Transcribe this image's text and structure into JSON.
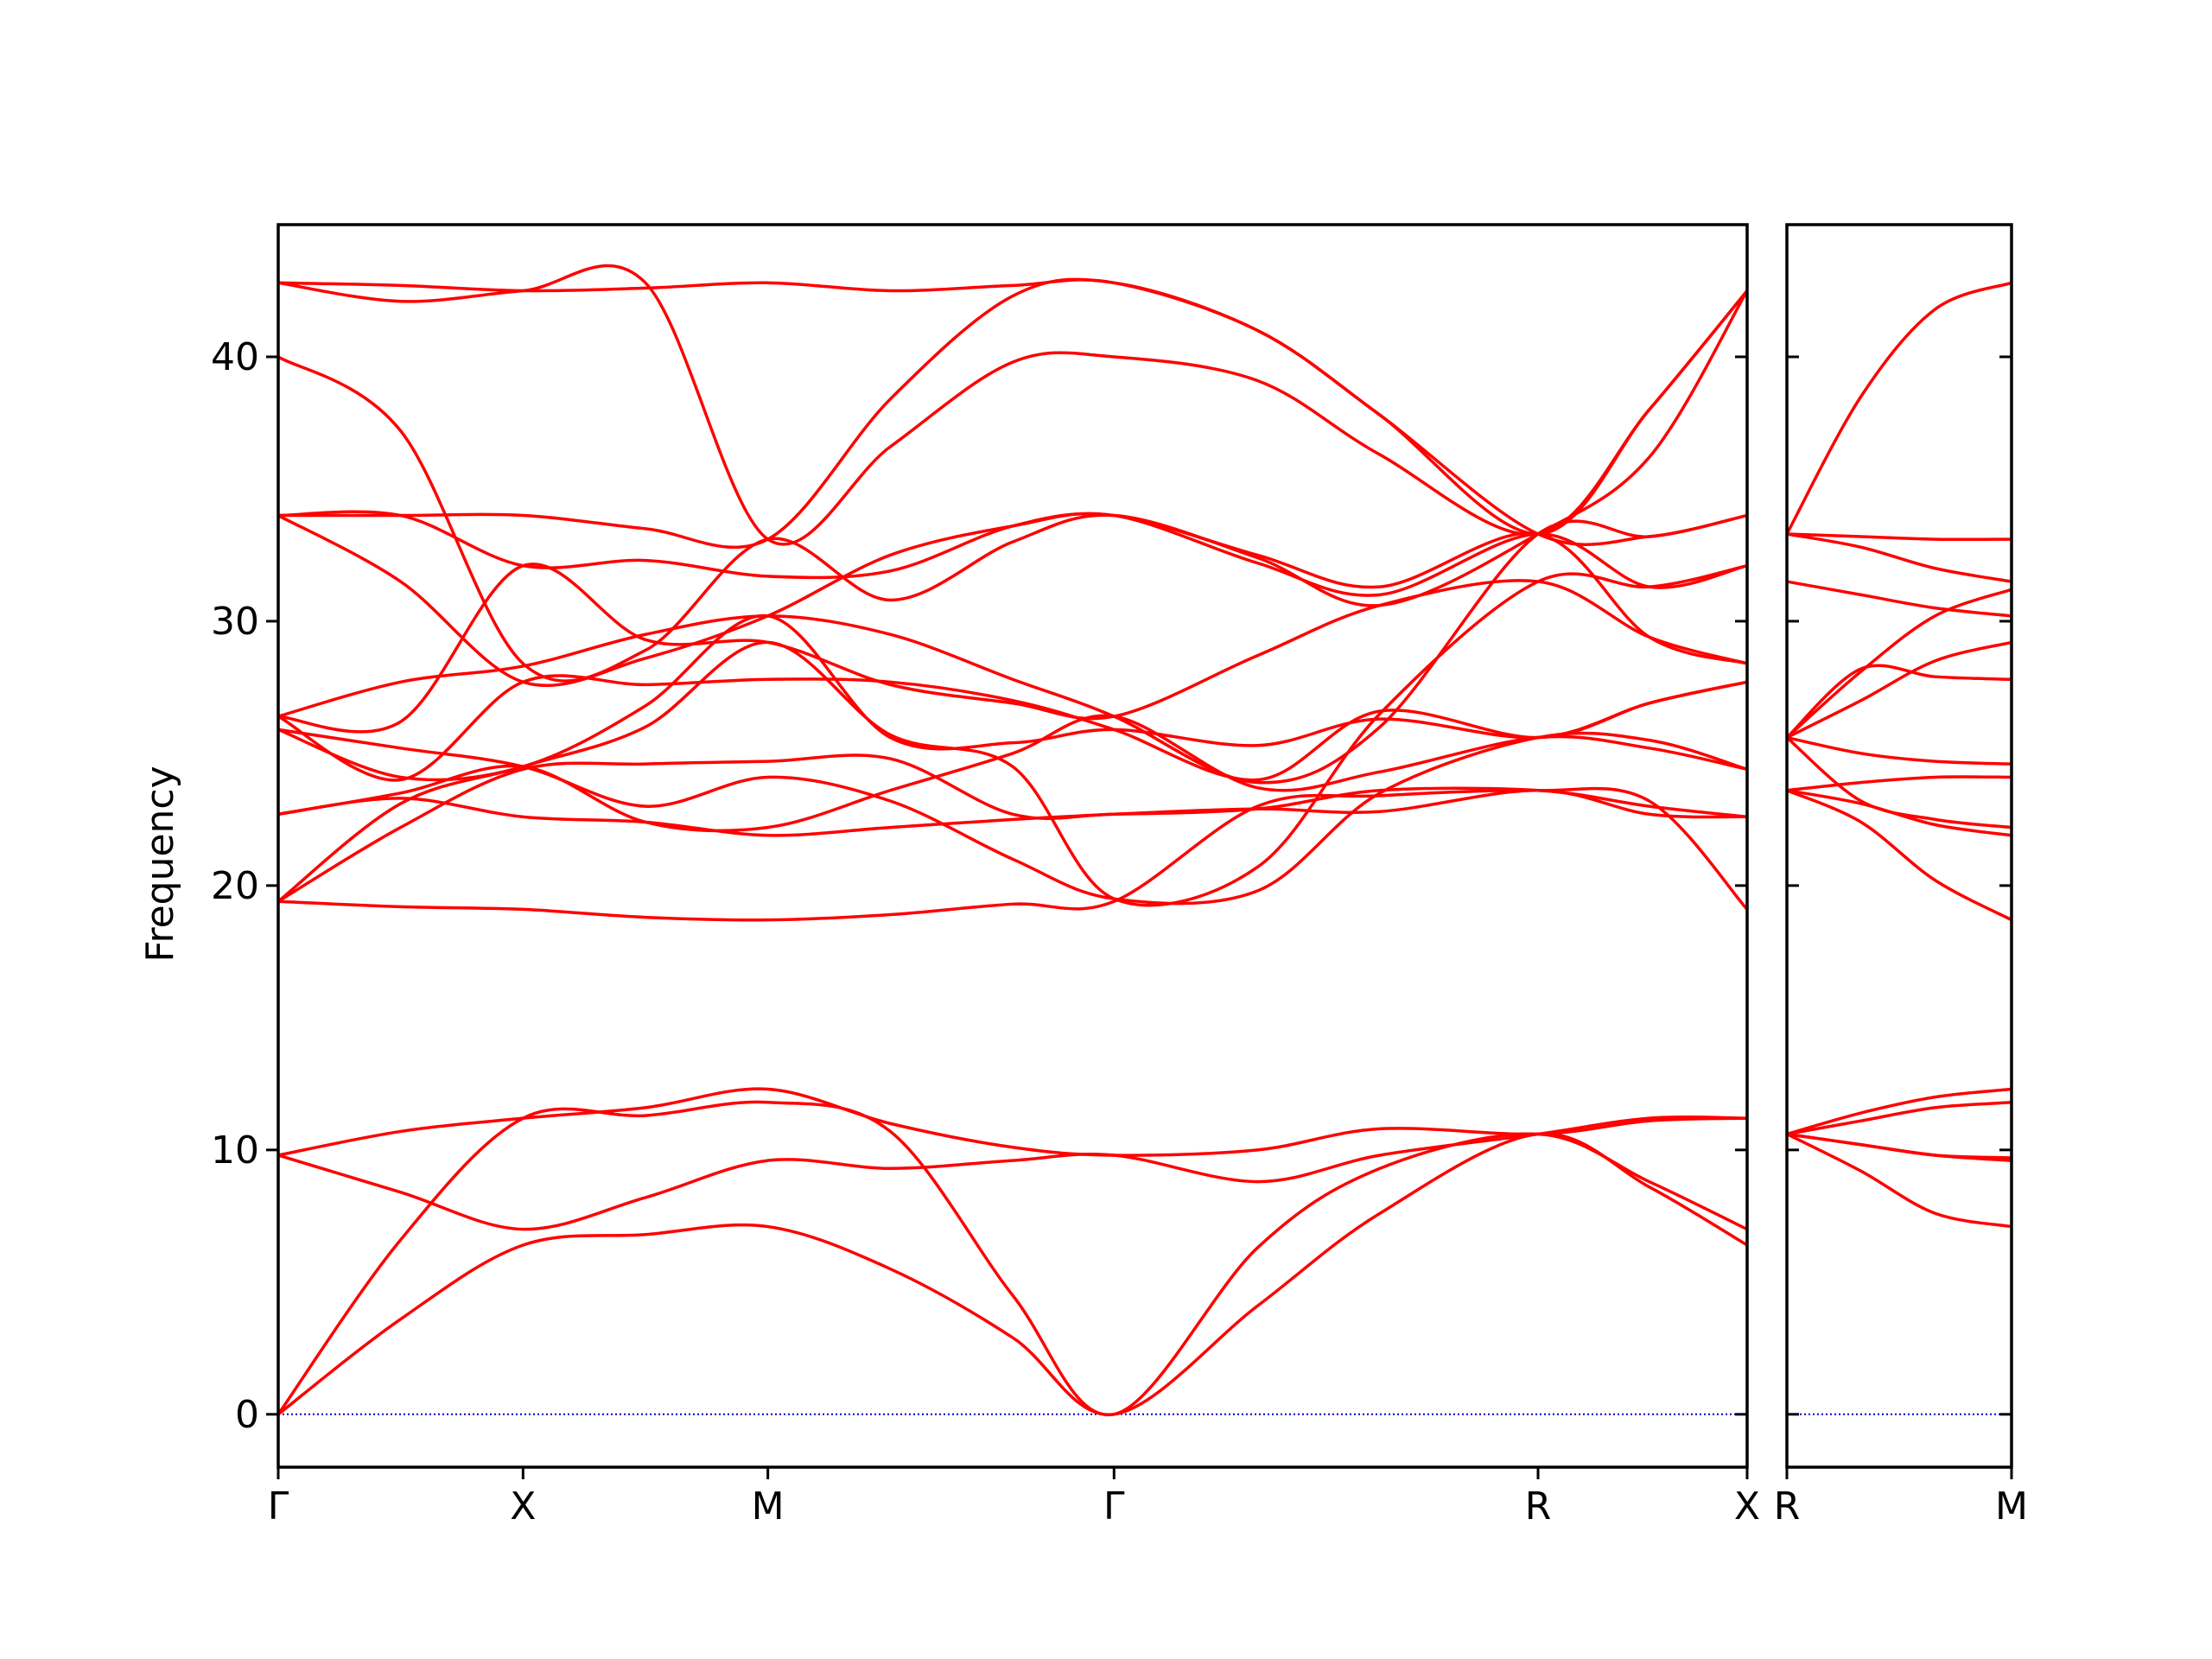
{
  "chart_data": {
    "type": "line",
    "title": "",
    "ylabel": "Frequency",
    "xlabel": "",
    "ylim": [
      -2,
      45
    ],
    "yticks": [
      0,
      10,
      20,
      30,
      40
    ],
    "grid": false,
    "legend": "none",
    "line_color": "#ff0000",
    "zero_line_color": "#0000cc",
    "panels": [
      {
        "xlim": [
          0,
          6
        ],
        "ticks": [
          {
            "x": 0,
            "label": "Γ"
          },
          {
            "x": 1,
            "label": "X"
          },
          {
            "x": 2,
            "label": "M"
          },
          {
            "x": 3.414,
            "label": "Γ"
          },
          {
            "x": 5.146,
            "label": "R"
          },
          {
            "x": 6,
            "label": "X"
          }
        ],
        "series": [
          {
            "x": [
              0,
              0.5,
              1,
              1.5,
              2,
              2.5,
              3,
              3.414,
              4,
              4.5,
              5.146,
              5.6,
              6
            ],
            "values": [
              0,
              3.6,
              6.4,
              6.8,
              7.1,
              5.5,
              2.9,
              0,
              4.1,
              7.6,
              10.6,
              8.6,
              6.4
            ]
          },
          {
            "x": [
              0,
              0.5,
              1,
              1.5,
              2,
              2.5,
              3,
              3.414,
              4,
              4.5,
              5.146,
              5.6,
              6
            ],
            "values": [
              0,
              6.6,
              11.2,
              11.3,
              11.8,
              10.7,
              4.5,
              0,
              6.3,
              9.3,
              10.6,
              8.8,
              7.0
            ]
          },
          {
            "x": [
              0,
              0.5,
              1,
              1.5,
              2,
              2.5,
              3,
              3.414,
              4,
              4.5,
              5.146,
              5.6,
              6
            ],
            "values": [
              9.8,
              8.4,
              7.0,
              8.2,
              9.6,
              9.3,
              9.6,
              9.8,
              8.8,
              9.8,
              10.6,
              11.2,
              11.2
            ]
          },
          {
            "x": [
              0,
              0.5,
              1,
              1.5,
              2,
              2.5,
              3,
              3.414,
              4,
              4.5,
              5.146,
              5.6,
              6
            ],
            "values": [
              9.8,
              10.7,
              11.2,
              11.6,
              12.3,
              11.0,
              10.1,
              9.8,
              10.0,
              10.8,
              10.6,
              11.1,
              11.2
            ]
          },
          {
            "x": [
              0,
              0.5,
              1,
              1.5,
              2,
              2.5,
              3,
              3.414,
              4,
              4.5,
              5.146,
              5.6,
              6
            ],
            "values": [
              19.4,
              19.2,
              19.1,
              18.8,
              18.7,
              18.9,
              19.3,
              19.4,
              23.0,
              23.4,
              23.6,
              23.2,
              19.1
            ]
          },
          {
            "x": [
              0,
              0.5,
              1,
              1.5,
              2,
              2.5,
              3,
              3.414,
              4,
              4.5,
              5.146,
              5.6,
              6
            ],
            "values": [
              22.7,
              23.3,
              22.6,
              22.4,
              21.9,
              22.2,
              22.5,
              22.7,
              22.9,
              22.8,
              23.6,
              22.7,
              22.6
            ]
          },
          {
            "x": [
              0,
              0.5,
              1,
              1.5,
              2,
              2.5,
              3,
              3.414,
              4,
              4.5,
              5.146,
              5.6,
              6
            ],
            "values": [
              19.4,
              22.2,
              24.4,
              24.6,
              24.7,
              24.8,
              22.7,
              22.7,
              22.9,
              23.6,
              23.6,
              23.0,
              22.6
            ]
          },
          {
            "x": [
              0,
              0.5,
              1,
              1.5,
              2,
              2.5,
              3,
              3.414,
              4,
              4.5,
              5.146,
              5.6,
              6
            ],
            "values": [
              22.7,
              23.5,
              24.5,
              22.4,
              22.2,
              23.6,
              25.0,
              26.4,
              23.7,
              24.3,
              25.6,
              25.2,
              24.4
            ]
          },
          {
            "x": [
              0,
              0.5,
              1,
              1.5,
              2,
              2.5,
              3,
              3.414,
              4,
              4.5,
              5.146,
              5.6,
              6
            ],
            "values": [
              25.9,
              25.2,
              24.5,
              23.0,
              24.1,
              23.2,
              21.0,
              19.5,
              19.8,
              23.5,
              25.6,
              25.5,
              24.4
            ]
          },
          {
            "x": [
              0,
              0.5,
              1,
              1.5,
              2,
              2.5,
              3,
              3.414,
              4,
              4.5,
              5.146,
              5.6,
              6
            ],
            "values": [
              25.9,
              24.1,
              24.5,
              26.8,
              30.2,
              25.6,
              25.4,
              25.9,
              25.3,
              26.3,
              25.6,
              26.9,
              27.7
            ]
          },
          {
            "x": [
              0,
              0.5,
              1,
              1.5,
              2,
              2.5,
              3,
              3.414,
              4,
              4.5,
              5.146,
              5.6,
              6
            ],
            "values": [
              26.4,
              24.0,
              27.7,
              27.6,
              27.8,
              27.7,
              27.0,
              25.9,
              24.0,
              26.6,
              25.6,
              26.9,
              27.7
            ]
          },
          {
            "x": [
              0,
              0.5,
              1,
              1.5,
              2,
              2.5,
              3,
              3.414,
              4,
              4.5,
              5.146,
              5.6,
              6
            ],
            "values": [
              19.4,
              23.1,
              24.5,
              26.0,
              29.2,
              25.7,
              24.5,
              19.5,
              20.7,
              26.5,
              31.5,
              31.3,
              32.1
            ]
          },
          {
            "x": [
              0,
              0.5,
              1,
              1.5,
              2,
              2.5,
              3,
              3.414,
              4,
              4.5,
              5.146,
              5.6,
              6
            ],
            "values": [
              26.4,
              26.2,
              32.1,
              29.3,
              29.2,
              27.6,
              26.9,
              26.4,
              28.7,
              30.6,
              31.5,
              29.4,
              28.4
            ]
          },
          {
            "x": [
              0,
              0.5,
              1,
              1.5,
              2,
              2.5,
              3,
              3.414,
              4,
              4.5,
              5.146,
              5.6,
              6
            ],
            "values": [
              26.4,
              27.7,
              28.3,
              29.5,
              30.2,
              29.5,
              27.8,
              26.4,
              23.9,
              26.0,
              33.3,
              33.2,
              34.0
            ]
          },
          {
            "x": [
              0,
              0.5,
              1,
              1.5,
              2,
              2.5,
              3,
              3.414,
              4,
              4.5,
              5.146,
              5.6,
              6
            ],
            "values": [
              34.0,
              31.5,
              27.7,
              28.6,
              30.2,
              32.5,
              33.6,
              34.0,
              32.2,
              31.0,
              33.3,
              31.3,
              32.1
            ]
          },
          {
            "x": [
              0,
              0.5,
              1,
              1.5,
              2,
              2.5,
              3,
              3.414,
              4,
              4.5,
              5.146,
              5.6,
              6
            ],
            "values": [
              34.0,
              34.0,
              32.1,
              32.3,
              31.7,
              31.9,
              33.6,
              34.0,
              32.5,
              31.3,
              33.3,
              29.4,
              28.4
            ]
          },
          {
            "x": [
              0,
              0.5,
              1,
              1.5,
              2,
              2.5,
              3,
              3.414,
              4,
              4.5,
              5.146,
              5.6,
              6
            ],
            "values": [
              40.0,
              37.2,
              28.4,
              28.9,
              33.1,
              30.8,
              33.0,
              34.0,
              32.4,
              30.6,
              33.3,
              36.2,
              42.5
            ]
          },
          {
            "x": [
              0,
              0.5,
              1,
              1.5,
              2,
              2.5,
              3,
              3.414,
              4,
              4.5,
              5.146,
              5.6,
              6
            ],
            "values": [
              42.8,
              42.1,
              42.5,
              42.8,
              33.1,
              36.6,
              39.8,
              40.0,
              39.1,
              36.3,
              33.3,
              38.0,
              42.5
            ]
          },
          {
            "x": [
              0,
              0.5,
              1,
              1.5,
              2,
              2.5,
              3,
              3.414,
              4,
              4.5,
              5.146,
              5.6,
              6
            ],
            "values": [
              42.8,
              42.7,
              42.5,
              42.6,
              42.8,
              42.5,
              42.7,
              42.8,
              41.0,
              37.8,
              33.3,
              38.0,
              42.5
            ]
          },
          {
            "x": [
              0,
              0.5,
              1,
              1.5,
              2,
              2.5,
              3,
              3.414,
              4,
              4.5,
              5.146,
              5.6,
              6
            ],
            "values": [
              34.0,
              34.0,
              34.0,
              33.5,
              33.1,
              38.4,
              42.3,
              42.8,
              41.0,
              37.8,
              33.3,
              33.2,
              34.0
            ]
          }
        ]
      },
      {
        "xlim": [
          0,
          1
        ],
        "ticks": [
          {
            "x": 0,
            "label": "R"
          },
          {
            "x": 1,
            "label": "M"
          }
        ],
        "series": [
          {
            "x": [
              0,
              0.33,
              0.66,
              1
            ],
            "values": [
              10.6,
              9.2,
              7.6,
              7.1
            ]
          },
          {
            "x": [
              0,
              0.33,
              0.66,
              1
            ],
            "values": [
              10.6,
              10.2,
              9.8,
              9.6
            ]
          },
          {
            "x": [
              0,
              0.33,
              0.66,
              1
            ],
            "values": [
              10.6,
              10.2,
              9.8,
              9.7
            ]
          },
          {
            "x": [
              0,
              0.33,
              0.66,
              1
            ],
            "values": [
              10.6,
              11.1,
              11.6,
              11.8
            ]
          },
          {
            "x": [
              0,
              0.33,
              0.66,
              1
            ],
            "values": [
              10.6,
              11.4,
              12.0,
              12.3
            ]
          },
          {
            "x": [
              0,
              0.33,
              0.66,
              1
            ],
            "values": [
              23.6,
              22.4,
              20.2,
              18.7
            ]
          },
          {
            "x": [
              0,
              0.33,
              0.66,
              1
            ],
            "values": [
              23.6,
              23.1,
              22.3,
              21.9
            ]
          },
          {
            "x": [
              0,
              0.33,
              0.66,
              1
            ],
            "values": [
              25.6,
              23.2,
              22.5,
              22.2
            ]
          },
          {
            "x": [
              0,
              0.33,
              0.66,
              1
            ],
            "values": [
              23.6,
              23.9,
              24.1,
              24.1
            ]
          },
          {
            "x": [
              0,
              0.33,
              0.66,
              1
            ],
            "values": [
              25.6,
              25.0,
              24.7,
              24.6
            ]
          },
          {
            "x": [
              0,
              0.33,
              0.66,
              1
            ],
            "values": [
              25.6,
              28.2,
              27.9,
              27.8
            ]
          },
          {
            "x": [
              0,
              0.33,
              0.66,
              1
            ],
            "values": [
              25.6,
              27.0,
              28.5,
              29.2
            ]
          },
          {
            "x": [
              0,
              0.33,
              0.66,
              1
            ],
            "values": [
              25.6,
              28.1,
              30.2,
              31.2
            ]
          },
          {
            "x": [
              0,
              0.33,
              0.66,
              1
            ],
            "values": [
              31.5,
              31.0,
              30.5,
              30.2
            ]
          },
          {
            "x": [
              0,
              0.33,
              0.66,
              1
            ],
            "values": [
              33.3,
              32.8,
              32.0,
              31.5
            ]
          },
          {
            "x": [
              0,
              0.33,
              0.66,
              1
            ],
            "values": [
              33.3,
              33.2,
              33.1,
              33.1
            ]
          },
          {
            "x": [
              0,
              0.33,
              0.66,
              1
            ],
            "values": [
              33.3,
              38.5,
              41.8,
              42.8
            ]
          }
        ]
      }
    ]
  }
}
